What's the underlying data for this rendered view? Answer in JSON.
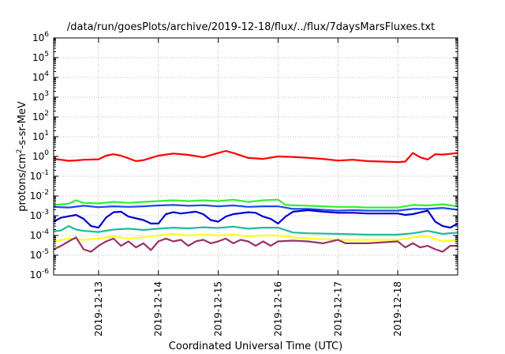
{
  "chart_data": {
    "type": "line",
    "title": "/data/run/goesPlots/archive/2019-12-18/flux/../flux/7daysMarsFluxes.txt",
    "xlabel": "Coordinated Universal Time (UTC)",
    "ylabel": {
      "base": "protons/cm",
      "exp": "2",
      "rest": "-s-sr-MeV"
    },
    "y_scale": "log",
    "ylim": [
      1e-06,
      1000000.0
    ],
    "y_ticks": [
      {
        "value": 1e-06,
        "base": "10",
        "exp": "-6"
      },
      {
        "value": 1e-05,
        "base": "10",
        "exp": "-5"
      },
      {
        "value": 0.0001,
        "base": "10",
        "exp": "-4"
      },
      {
        "value": 0.001,
        "base": "10",
        "exp": "-3"
      },
      {
        "value": 0.01,
        "base": "10",
        "exp": "-2"
      },
      {
        "value": 0.1,
        "base": "10",
        "exp": "-1"
      },
      {
        "value": 1,
        "base": "10",
        "exp": "0"
      },
      {
        "value": 10,
        "base": "10",
        "exp": "1"
      },
      {
        "value": 100,
        "base": "10",
        "exp": "2"
      },
      {
        "value": 1000,
        "base": "10",
        "exp": "3"
      },
      {
        "value": 10000,
        "base": "10",
        "exp": "4"
      },
      {
        "value": 100000,
        "base": "10",
        "exp": "5"
      },
      {
        "value": 1000000,
        "base": "10",
        "exp": "6"
      }
    ],
    "xlim": [
      "2019-12-12T06:00",
      "2019-12-19T00:00"
    ],
    "x_ticks": [
      "2019-12-13",
      "2019-12-14",
      "2019-12-15",
      "2019-12-16",
      "2019-12-17",
      "2019-12-18"
    ],
    "grid": true,
    "legend": "none",
    "series": [
      {
        "color": "#ff0000",
        "points": [
          [
            "2019-12-12T06:00",
            0.75
          ],
          [
            "2019-12-12T09:00",
            0.68
          ],
          [
            "2019-12-12T12:00",
            0.6
          ],
          [
            "2019-12-12T15:00",
            0.63
          ],
          [
            "2019-12-12T18:00",
            0.68
          ],
          [
            "2019-12-13T00:00",
            0.72
          ],
          [
            "2019-12-13T03:00",
            1.1
          ],
          [
            "2019-12-13T06:00",
            1.3
          ],
          [
            "2019-12-13T09:00",
            1.1
          ],
          [
            "2019-12-13T12:00",
            0.8
          ],
          [
            "2019-12-13T15:00",
            0.58
          ],
          [
            "2019-12-13T18:00",
            0.65
          ],
          [
            "2019-12-14T00:00",
            1.1
          ],
          [
            "2019-12-14T06:00",
            1.4
          ],
          [
            "2019-12-14T12:00",
            1.2
          ],
          [
            "2019-12-14T18:00",
            0.9
          ],
          [
            "2019-12-15T00:00",
            1.5
          ],
          [
            "2019-12-15T03:00",
            1.9
          ],
          [
            "2019-12-15T06:00",
            1.5
          ],
          [
            "2019-12-15T12:00",
            0.85
          ],
          [
            "2019-12-15T18:00",
            0.75
          ],
          [
            "2019-12-16T00:00",
            1.0
          ],
          [
            "2019-12-16T06:00",
            0.95
          ],
          [
            "2019-12-16T12:00",
            0.85
          ],
          [
            "2019-12-16T18:00",
            0.75
          ],
          [
            "2019-12-17T00:00",
            0.62
          ],
          [
            "2019-12-17T06:00",
            0.68
          ],
          [
            "2019-12-17T12:00",
            0.58
          ],
          [
            "2019-12-17T18:00",
            0.55
          ],
          [
            "2019-12-18T00:00",
            0.52
          ],
          [
            "2019-12-18T03:00",
            0.55
          ],
          [
            "2019-12-18T06:00",
            1.5
          ],
          [
            "2019-12-18T09:00",
            0.9
          ],
          [
            "2019-12-18T12:00",
            0.7
          ],
          [
            "2019-12-18T15:00",
            1.3
          ],
          [
            "2019-12-18T18:00",
            1.25
          ],
          [
            "2019-12-18T21:00",
            1.35
          ],
          [
            "2019-12-19T00:00",
            1.5
          ]
        ]
      },
      {
        "color": "#33ee33",
        "points": [
          [
            "2019-12-12T06:00",
            0.0035
          ],
          [
            "2019-12-12T12:00",
            0.004
          ],
          [
            "2019-12-12T15:00",
            0.006
          ],
          [
            "2019-12-12T18:00",
            0.0045
          ],
          [
            "2019-12-13T00:00",
            0.0042
          ],
          [
            "2019-12-13T06:00",
            0.005
          ],
          [
            "2019-12-13T12:00",
            0.0045
          ],
          [
            "2019-12-13T18:00",
            0.005
          ],
          [
            "2019-12-14T00:00",
            0.0055
          ],
          [
            "2019-12-14T06:00",
            0.006
          ],
          [
            "2019-12-14T12:00",
            0.0055
          ],
          [
            "2019-12-14T18:00",
            0.006
          ],
          [
            "2019-12-15T00:00",
            0.0055
          ],
          [
            "2019-12-15T06:00",
            0.0065
          ],
          [
            "2019-12-15T12:00",
            0.005
          ],
          [
            "2019-12-15T18:00",
            0.006
          ],
          [
            "2019-12-16T00:00",
            0.0065
          ],
          [
            "2019-12-16T03:00",
            0.0035
          ],
          [
            "2019-12-16T12:00",
            0.0032
          ],
          [
            "2019-12-16T18:00",
            0.003
          ],
          [
            "2019-12-17T00:00",
            0.0028
          ],
          [
            "2019-12-17T06:00",
            0.0028
          ],
          [
            "2019-12-17T12:00",
            0.0026
          ],
          [
            "2019-12-18T00:00",
            0.0026
          ],
          [
            "2019-12-18T06:00",
            0.0035
          ],
          [
            "2019-12-18T12:00",
            0.0033
          ],
          [
            "2019-12-18T18:00",
            0.0038
          ],
          [
            "2019-12-19T00:00",
            0.003
          ]
        ]
      },
      {
        "color": "#1a4aee",
        "points": [
          [
            "2019-12-12T06:00",
            0.0028
          ],
          [
            "2019-12-12T12:00",
            0.0026
          ],
          [
            "2019-12-12T18:00",
            0.0032
          ],
          [
            "2019-12-13T00:00",
            0.0027
          ],
          [
            "2019-12-13T06:00",
            0.003
          ],
          [
            "2019-12-13T12:00",
            0.0028
          ],
          [
            "2019-12-13T18:00",
            0.003
          ],
          [
            "2019-12-14T00:00",
            0.0033
          ],
          [
            "2019-12-14T06:00",
            0.0035
          ],
          [
            "2019-12-14T12:00",
            0.0032
          ],
          [
            "2019-12-14T18:00",
            0.0034
          ],
          [
            "2019-12-15T00:00",
            0.003
          ],
          [
            "2019-12-15T06:00",
            0.0033
          ],
          [
            "2019-12-15T12:00",
            0.0028
          ],
          [
            "2019-12-15T18:00",
            0.003
          ],
          [
            "2019-12-16T00:00",
            0.003
          ],
          [
            "2019-12-16T06:00",
            0.0022
          ],
          [
            "2019-12-16T12:00",
            0.0022
          ],
          [
            "2019-12-16T18:00",
            0.002
          ],
          [
            "2019-12-17T00:00",
            0.0018
          ],
          [
            "2019-12-17T06:00",
            0.0019
          ],
          [
            "2019-12-17T12:00",
            0.0018
          ],
          [
            "2019-12-18T00:00",
            0.0018
          ],
          [
            "2019-12-18T06:00",
            0.0022
          ],
          [
            "2019-12-18T12:00",
            0.0022
          ],
          [
            "2019-12-18T18:00",
            0.0025
          ],
          [
            "2019-12-19T00:00",
            0.002
          ]
        ]
      },
      {
        "color": "#0000cc",
        "points": [
          [
            "2019-12-12T06:00",
            0.0005
          ],
          [
            "2019-12-12T09:00",
            0.0008
          ],
          [
            "2019-12-12T15:00",
            0.0011
          ],
          [
            "2019-12-12T18:00",
            0.0007
          ],
          [
            "2019-12-12T21:00",
            0.0003
          ],
          [
            "2019-12-13T00:00",
            0.00025
          ],
          [
            "2019-12-13T03:00",
            0.0008
          ],
          [
            "2019-12-13T06:00",
            0.0015
          ],
          [
            "2019-12-13T09:00",
            0.0016
          ],
          [
            "2019-12-13T12:00",
            0.0009
          ],
          [
            "2019-12-13T18:00",
            0.0006
          ],
          [
            "2019-12-13T21:00",
            0.0004
          ],
          [
            "2019-12-14T00:00",
            0.0004
          ],
          [
            "2019-12-14T03:00",
            0.0012
          ],
          [
            "2019-12-14T06:00",
            0.0015
          ],
          [
            "2019-12-14T09:00",
            0.0013
          ],
          [
            "2019-12-14T15:00",
            0.0016
          ],
          [
            "2019-12-14T18:00",
            0.0012
          ],
          [
            "2019-12-14T21:00",
            0.0006
          ],
          [
            "2019-12-15T00:00",
            0.0005
          ],
          [
            "2019-12-15T03:00",
            0.0009
          ],
          [
            "2019-12-15T06:00",
            0.0012
          ],
          [
            "2019-12-15T12:00",
            0.0015
          ],
          [
            "2019-12-15T15:00",
            0.0014
          ],
          [
            "2019-12-15T18:00",
            0.0009
          ],
          [
            "2019-12-15T21:00",
            0.0007
          ],
          [
            "2019-12-16T00:00",
            0.0004
          ],
          [
            "2019-12-16T03:00",
            0.0009
          ],
          [
            "2019-12-16T06:00",
            0.0016
          ],
          [
            "2019-12-16T12:00",
            0.0019
          ],
          [
            "2019-12-16T18:00",
            0.0016
          ],
          [
            "2019-12-17T00:00",
            0.0014
          ],
          [
            "2019-12-17T06:00",
            0.0014
          ],
          [
            "2019-12-17T12:00",
            0.0013
          ],
          [
            "2019-12-17T18:00",
            0.0013
          ],
          [
            "2019-12-18T00:00",
            0.0013
          ],
          [
            "2019-12-18T03:00",
            0.0011
          ],
          [
            "2019-12-18T06:00",
            0.0012
          ],
          [
            "2019-12-18T12:00",
            0.0018
          ],
          [
            "2019-12-18T15:00",
            0.0005
          ],
          [
            "2019-12-18T18:00",
            0.0003
          ],
          [
            "2019-12-18T21:00",
            0.00025
          ],
          [
            "2019-12-19T00:00",
            0.0004
          ]
        ]
      },
      {
        "color": "#22bb99",
        "points": [
          [
            "2019-12-12T06:00",
            0.00016
          ],
          [
            "2019-12-12T09:00",
            0.00018
          ],
          [
            "2019-12-12T12:00",
            0.0003
          ],
          [
            "2019-12-12T15:00",
            0.0002
          ],
          [
            "2019-12-12T18:00",
            0.00017
          ],
          [
            "2019-12-13T00:00",
            0.00015
          ],
          [
            "2019-12-13T06:00",
            0.0002
          ],
          [
            "2019-12-13T12:00",
            0.00022
          ],
          [
            "2019-12-13T18:00",
            0.00019
          ],
          [
            "2019-12-14T00:00",
            0.00022
          ],
          [
            "2019-12-14T06:00",
            0.00025
          ],
          [
            "2019-12-14T12:00",
            0.00023
          ],
          [
            "2019-12-14T18:00",
            0.00026
          ],
          [
            "2019-12-15T00:00",
            0.00024
          ],
          [
            "2019-12-15T06:00",
            0.00028
          ],
          [
            "2019-12-15T12:00",
            0.00022
          ],
          [
            "2019-12-15T18:00",
            0.00025
          ],
          [
            "2019-12-16T00:00",
            0.00025
          ],
          [
            "2019-12-16T06:00",
            0.00014
          ],
          [
            "2019-12-16T12:00",
            0.00013
          ],
          [
            "2019-12-17T00:00",
            0.00012
          ],
          [
            "2019-12-17T12:00",
            0.00011
          ],
          [
            "2019-12-18T00:00",
            0.00011
          ],
          [
            "2019-12-18T06:00",
            0.00013
          ],
          [
            "2019-12-18T12:00",
            0.00017
          ],
          [
            "2019-12-18T18:00",
            0.00012
          ],
          [
            "2019-12-19T00:00",
            0.00014
          ]
        ]
      },
      {
        "color": "#ffff22",
        "points": [
          [
            "2019-12-12T06:00",
            5e-05
          ],
          [
            "2019-12-12T12:00",
            7e-05
          ],
          [
            "2019-12-12T18:00",
            6e-05
          ],
          [
            "2019-12-13T00:00",
            7e-05
          ],
          [
            "2019-12-13T06:00",
            9e-05
          ],
          [
            "2019-12-13T12:00",
            7e-05
          ],
          [
            "2019-12-13T18:00",
            8e-05
          ],
          [
            "2019-12-14T00:00",
            0.0001
          ],
          [
            "2019-12-14T06:00",
            0.00012
          ],
          [
            "2019-12-14T12:00",
            0.0001
          ],
          [
            "2019-12-14T18:00",
            0.00011
          ],
          [
            "2019-12-15T00:00",
            0.0001
          ],
          [
            "2019-12-15T06:00",
            0.00011
          ],
          [
            "2019-12-15T12:00",
            9e-05
          ],
          [
            "2019-12-15T18:00",
            0.0001
          ],
          [
            "2019-12-16T00:00",
            0.0001
          ],
          [
            "2019-12-16T06:00",
            8e-05
          ],
          [
            "2019-12-16T12:00",
            7e-05
          ],
          [
            "2019-12-17T00:00",
            6e-05
          ],
          [
            "2019-12-17T12:00",
            6e-05
          ],
          [
            "2019-12-18T00:00",
            6e-05
          ],
          [
            "2019-12-18T06:00",
            8e-05
          ],
          [
            "2019-12-18T12:00",
            9e-05
          ],
          [
            "2019-12-18T18:00",
            5e-05
          ],
          [
            "2019-12-19T00:00",
            6e-05
          ]
        ]
      },
      {
        "color": "#993366",
        "points": [
          [
            "2019-12-12T06:00",
            2e-05
          ],
          [
            "2019-12-12T09:00",
            3e-05
          ],
          [
            "2019-12-12T12:00",
            5e-05
          ],
          [
            "2019-12-12T15:00",
            8e-05
          ],
          [
            "2019-12-12T18:00",
            2e-05
          ],
          [
            "2019-12-12T21:00",
            1.5e-05
          ],
          [
            "2019-12-13T00:00",
            3e-05
          ],
          [
            "2019-12-13T03:00",
            5e-05
          ],
          [
            "2019-12-13T06:00",
            7e-05
          ],
          [
            "2019-12-13T09:00",
            3e-05
          ],
          [
            "2019-12-13T12:00",
            5e-05
          ],
          [
            "2019-12-13T15:00",
            2.5e-05
          ],
          [
            "2019-12-13T18:00",
            4e-05
          ],
          [
            "2019-12-13T21:00",
            1.8e-05
          ],
          [
            "2019-12-14T00:00",
            5e-05
          ],
          [
            "2019-12-14T03:00",
            7e-05
          ],
          [
            "2019-12-14T06:00",
            5e-05
          ],
          [
            "2019-12-14T09:00",
            6e-05
          ],
          [
            "2019-12-14T12:00",
            3e-05
          ],
          [
            "2019-12-14T15:00",
            5e-05
          ],
          [
            "2019-12-14T18:00",
            6e-05
          ],
          [
            "2019-12-14T21:00",
            4e-05
          ],
          [
            "2019-12-15T00:00",
            5e-05
          ],
          [
            "2019-12-15T03:00",
            7e-05
          ],
          [
            "2019-12-15T06:00",
            4e-05
          ],
          [
            "2019-12-15T09:00",
            6e-05
          ],
          [
            "2019-12-15T12:00",
            5e-05
          ],
          [
            "2019-12-15T15:00",
            3e-05
          ],
          [
            "2019-12-15T18:00",
            5e-05
          ],
          [
            "2019-12-15T21:00",
            3e-05
          ],
          [
            "2019-12-16T00:00",
            5e-05
          ],
          [
            "2019-12-16T06:00",
            5.5e-05
          ],
          [
            "2019-12-16T12:00",
            5e-05
          ],
          [
            "2019-12-16T18:00",
            4e-05
          ],
          [
            "2019-12-17T00:00",
            6e-05
          ],
          [
            "2019-12-17T03:00",
            4e-05
          ],
          [
            "2019-12-17T12:00",
            4e-05
          ],
          [
            "2019-12-18T00:00",
            5e-05
          ],
          [
            "2019-12-18T03:00",
            2.5e-05
          ],
          [
            "2019-12-18T06:00",
            4e-05
          ],
          [
            "2019-12-18T09:00",
            2.5e-05
          ],
          [
            "2019-12-18T12:00",
            3e-05
          ],
          [
            "2019-12-18T15:00",
            2e-05
          ],
          [
            "2019-12-18T18:00",
            1.5e-05
          ],
          [
            "2019-12-18T21:00",
            3e-05
          ],
          [
            "2019-12-19T00:00",
            3e-05
          ]
        ]
      }
    ]
  }
}
